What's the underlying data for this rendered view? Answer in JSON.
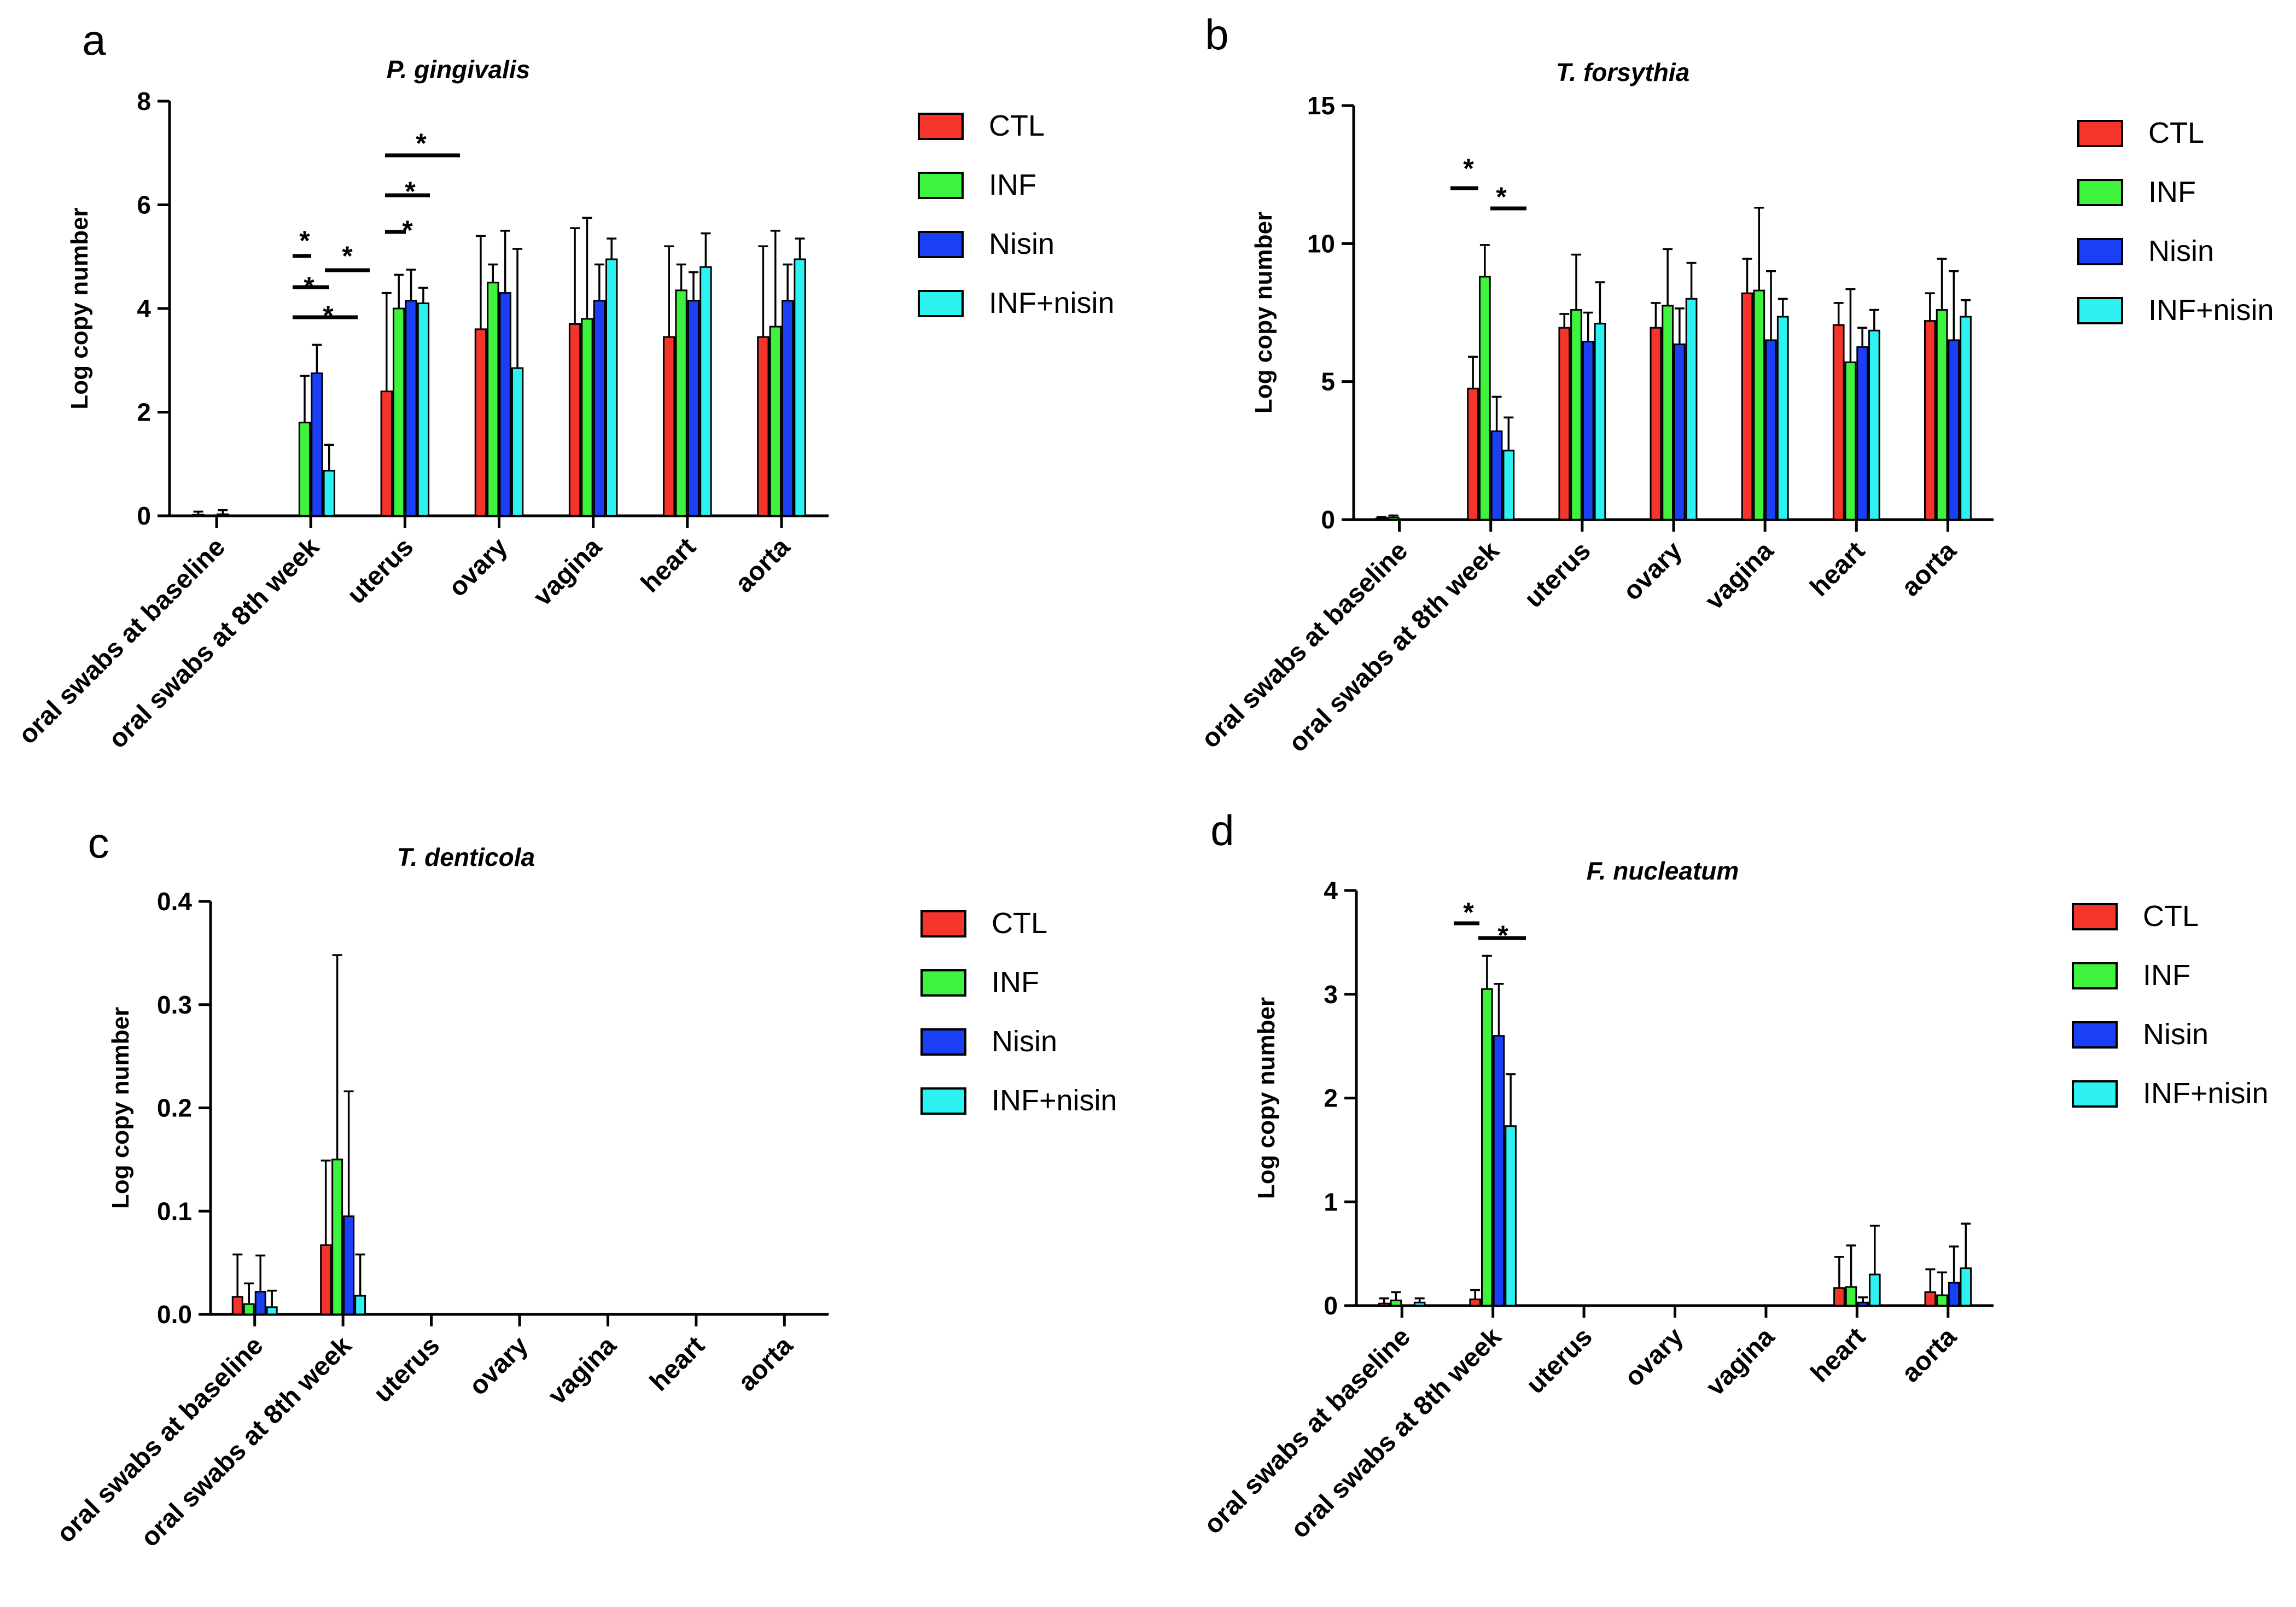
{
  "legend": {
    "ctl": "CTL",
    "inf": "INF",
    "nisin": "Nisin",
    "inf_nisin": "INF+nisin"
  },
  "colors": {
    "CTL": "#f5352b",
    "INF": "#3ef23e",
    "Nisin": "#1b3ff5",
    "INF+nisin": "#2ef2f2",
    "axis": "#000000"
  },
  "chart_data": [
    {
      "panel": "a",
      "type": "bar",
      "title": "P. gingivalis",
      "ylabel": "Log copy number",
      "ylim": [
        0,
        8
      ],
      "yticks": [
        "0",
        "2",
        "4",
        "6",
        "8"
      ],
      "categories": [
        "oral swabs at baseline",
        "oral swabs at 8th week",
        "uterus",
        "ovary",
        "vagina",
        "heart",
        "aorta"
      ],
      "series": [
        {
          "name": "CTL",
          "values": [
            0.02,
            0.0,
            2.4,
            3.6,
            3.7,
            3.45,
            3.45
          ],
          "errors": [
            0.06,
            0.0,
            1.9,
            1.8,
            1.85,
            1.75,
            1.75
          ]
        },
        {
          "name": "INF",
          "values": [
            0.0,
            1.8,
            4.0,
            4.5,
            3.8,
            4.35,
            3.65
          ],
          "errors": [
            0.0,
            0.9,
            0.65,
            0.35,
            1.95,
            0.5,
            1.85
          ]
        },
        {
          "name": "Nisin",
          "values": [
            0.03,
            2.75,
            4.15,
            4.3,
            4.15,
            4.15,
            4.15
          ],
          "errors": [
            0.08,
            0.55,
            0.6,
            1.2,
            0.7,
            0.55,
            0.7
          ]
        },
        {
          "name": "INF+nisin",
          "values": [
            0.0,
            0.87,
            4.1,
            2.85,
            4.95,
            4.8,
            4.95
          ],
          "errors": [
            0.0,
            0.5,
            0.3,
            2.3,
            0.4,
            0.65,
            0.4
          ]
        }
      ],
      "significance": [
        "*",
        "*",
        "*",
        "*",
        "*",
        "*",
        "*"
      ]
    },
    {
      "panel": "b",
      "type": "bar",
      "title": "T. forsythia",
      "ylabel": "Log copy number",
      "ylim": [
        0,
        15
      ],
      "yticks": [
        "0",
        "5",
        "10",
        "15"
      ],
      "categories": [
        "oral swabs at baseline",
        "oral swabs at 8th week",
        "uterus",
        "ovary",
        "vagina",
        "heart",
        "aorta"
      ],
      "series": [
        {
          "name": "CTL",
          "values": [
            0.05,
            4.75,
            6.95,
            6.95,
            8.2,
            7.05,
            7.2
          ],
          "errors": [
            0.05,
            1.15,
            0.5,
            0.9,
            1.25,
            0.8,
            1.0
          ]
        },
        {
          "name": "INF",
          "values": [
            0.08,
            8.8,
            7.6,
            7.75,
            8.3,
            5.7,
            7.6
          ],
          "errors": [
            0.07,
            1.15,
            2.0,
            2.05,
            3.0,
            2.65,
            1.85
          ]
        },
        {
          "name": "Nisin",
          "values": [
            0.0,
            3.2,
            6.45,
            6.35,
            6.5,
            6.25,
            6.5
          ],
          "errors": [
            0.0,
            1.25,
            1.05,
            1.3,
            2.5,
            0.7,
            2.5
          ]
        },
        {
          "name": "INF+nisin",
          "values": [
            0.0,
            2.5,
            7.1,
            8.0,
            7.35,
            6.85,
            7.35
          ],
          "errors": [
            0.0,
            1.2,
            1.5,
            1.3,
            0.65,
            0.75,
            0.6
          ]
        }
      ],
      "significance": [
        "*",
        "*"
      ]
    },
    {
      "panel": "c",
      "type": "bar",
      "title": "T. denticola",
      "ylabel": "Log copy number",
      "ylim": [
        0,
        0.4
      ],
      "yticks": [
        "0.0",
        "0.1",
        "0.2",
        "0.3",
        "0.4"
      ],
      "categories": [
        "oral swabs at baseline",
        "oral swabs at 8th week",
        "uterus",
        "ovary",
        "vagina",
        "heart",
        "aorta"
      ],
      "series": [
        {
          "name": "CTL",
          "values": [
            0.017,
            0.067,
            0,
            0,
            0,
            0,
            0
          ],
          "errors": [
            0.041,
            0.082,
            0,
            0,
            0,
            0,
            0
          ]
        },
        {
          "name": "INF",
          "values": [
            0.01,
            0.15,
            0,
            0,
            0,
            0,
            0
          ],
          "errors": [
            0.02,
            0.198,
            0,
            0,
            0,
            0,
            0
          ]
        },
        {
          "name": "Nisin",
          "values": [
            0.022,
            0.095,
            0,
            0,
            0,
            0,
            0
          ],
          "errors": [
            0.035,
            0.121,
            0,
            0,
            0,
            0,
            0
          ]
        },
        {
          "name": "INF+nisin",
          "values": [
            0.007,
            0.018,
            0,
            0,
            0,
            0,
            0
          ],
          "errors": [
            0.016,
            0.04,
            0,
            0,
            0,
            0,
            0
          ]
        }
      ],
      "significance": []
    },
    {
      "panel": "d",
      "type": "bar",
      "title": "F. nucleatum",
      "ylabel": "Log copy number",
      "ylim": [
        0,
        4
      ],
      "yticks": [
        "0",
        "1",
        "2",
        "3",
        "4"
      ],
      "categories": [
        "oral swabs at baseline",
        "oral swabs at 8th week",
        "uterus",
        "ovary",
        "vagina",
        "heart",
        "aorta"
      ],
      "series": [
        {
          "name": "CTL",
          "values": [
            0.02,
            0.06,
            0,
            0,
            0,
            0.17,
            0.13
          ],
          "errors": [
            0.05,
            0.09,
            0,
            0,
            0,
            0.3,
            0.22
          ]
        },
        {
          "name": "INF",
          "values": [
            0.05,
            3.05,
            0,
            0,
            0,
            0.18,
            0.1
          ],
          "errors": [
            0.08,
            0.32,
            0,
            0,
            0,
            0.4,
            0.22
          ]
        },
        {
          "name": "Nisin",
          "values": [
            0.0,
            2.6,
            0,
            0,
            0,
            0.03,
            0.22
          ],
          "errors": [
            0.0,
            0.5,
            0,
            0,
            0,
            0.05,
            0.35
          ]
        },
        {
          "name": "INF+nisin",
          "values": [
            0.03,
            1.73,
            0,
            0,
            0,
            0.3,
            0.36
          ],
          "errors": [
            0.04,
            0.5,
            0,
            0,
            0,
            0.47,
            0.43
          ]
        }
      ],
      "significance": [
        "*",
        "*"
      ]
    }
  ]
}
